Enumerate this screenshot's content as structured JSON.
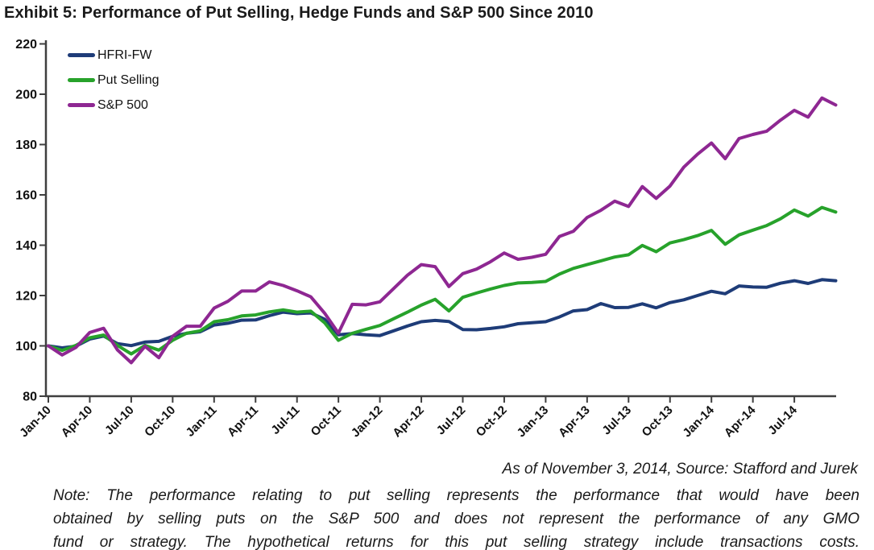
{
  "title": "Exhibit 5: Performance of Put Selling, Hedge Funds and S&P 500 Since 2010",
  "footer": {
    "source": "As of November 3, 2014, Source: Stafford and Jurek",
    "note_lines": [
      "Note: The performance relating to put selling represents the performance that would have been",
      "obtained by selling puts on the S&P 500 and does not represent the performance of any GMO",
      "fund or strategy. The hypothetical returns for this put selling strategy include transactions costs."
    ]
  },
  "chart_data": {
    "type": "line",
    "title": "Exhibit 5: Performance of Put Selling, Hedge Funds and S&P 500 Since 2010",
    "x_description": "Monthly cumulative performance indexed to 100 at Jan-2010, points through Oct-2014",
    "x_tick_labels": [
      "Jan-10",
      "Apr-10",
      "Jul-10",
      "Oct-10",
      "Jan-11",
      "Apr-11",
      "Jul-11",
      "Oct-11",
      "Jan-12",
      "Apr-12",
      "Jul-12",
      "Oct-12",
      "Jan-13",
      "Apr-13",
      "Jul-13",
      "Oct-13",
      "Jan-14",
      "Apr-14",
      "Jul-14"
    ],
    "months_per_tick": 3,
    "y_ticks": [
      220,
      200,
      180,
      160,
      140,
      120,
      100,
      80
    ],
    "ylim": [
      80,
      220
    ],
    "grid": false,
    "legend_position": "top-left",
    "axis_color": "#3f3f3f",
    "series": [
      {
        "name": "HFRI-FW",
        "color": "#1E3C78",
        "values": [
          100,
          99.2,
          99.9,
          102.7,
          103.9,
          100.9,
          100.1,
          101.5,
          101.8,
          103.8,
          105.0,
          105.6,
          108.3,
          109.0,
          110.2,
          110.3,
          112.0,
          113.4,
          112.8,
          113.1,
          110.6,
          104.4,
          104.9,
          104.4,
          104.1,
          106.0,
          107.9,
          109.6,
          110.1,
          109.7,
          106.5,
          106.4,
          106.9,
          107.6,
          108.8,
          109.2,
          109.6,
          111.5,
          113.9,
          114.4,
          116.8,
          115.2,
          115.3,
          116.7,
          115.1,
          117.2,
          118.3,
          120.0,
          121.7,
          120.7,
          123.8,
          123.4,
          123.3,
          124.9,
          125.9,
          124.8,
          126.3,
          125.9
        ]
      },
      {
        "name": "Put Selling",
        "color": "#27A22B",
        "values": [
          100,
          98.2,
          100.2,
          103.2,
          104.3,
          100.2,
          96.8,
          100.2,
          98.3,
          102.2,
          105.0,
          106.0,
          109.6,
          110.4,
          111.9,
          112.3,
          113.5,
          114.3,
          113.4,
          113.8,
          109.2,
          102.2,
          105.0,
          106.6,
          108.1,
          110.8,
          113.4,
          116.2,
          118.5,
          113.9,
          119.3,
          121.0,
          122.6,
          124.0,
          125.0,
          125.2,
          125.6,
          128.5,
          130.8,
          132.3,
          133.8,
          135.3,
          136.2,
          139.9,
          137.4,
          140.9,
          142.2,
          143.8,
          145.9,
          140.4,
          144.1,
          146.0,
          147.8,
          150.5,
          154.0,
          151.6,
          155.0,
          153.2
        ]
      },
      {
        "name": "S&P 500",
        "color": "#8E2792",
        "values": [
          100,
          96.4,
          99.4,
          105.3,
          107.0,
          98.4,
          93.3,
          99.8,
          95.3,
          103.8,
          107.8,
          107.8,
          115.0,
          117.7,
          121.8,
          121.8,
          125.4,
          124.0,
          121.9,
          119.5,
          113.0,
          105.1,
          116.5,
          116.3,
          117.5,
          122.8,
          128.1,
          132.3,
          131.5,
          123.6,
          128.7,
          130.5,
          133.4,
          136.9,
          134.4,
          135.2,
          136.4,
          143.5,
          145.5,
          151.0,
          153.9,
          157.5,
          155.4,
          163.3,
          158.6,
          163.5,
          171.0,
          176.2,
          180.6,
          174.4,
          182.4,
          184.0,
          185.3,
          189.7,
          193.6,
          190.9,
          198.5,
          195.7
        ]
      }
    ]
  }
}
